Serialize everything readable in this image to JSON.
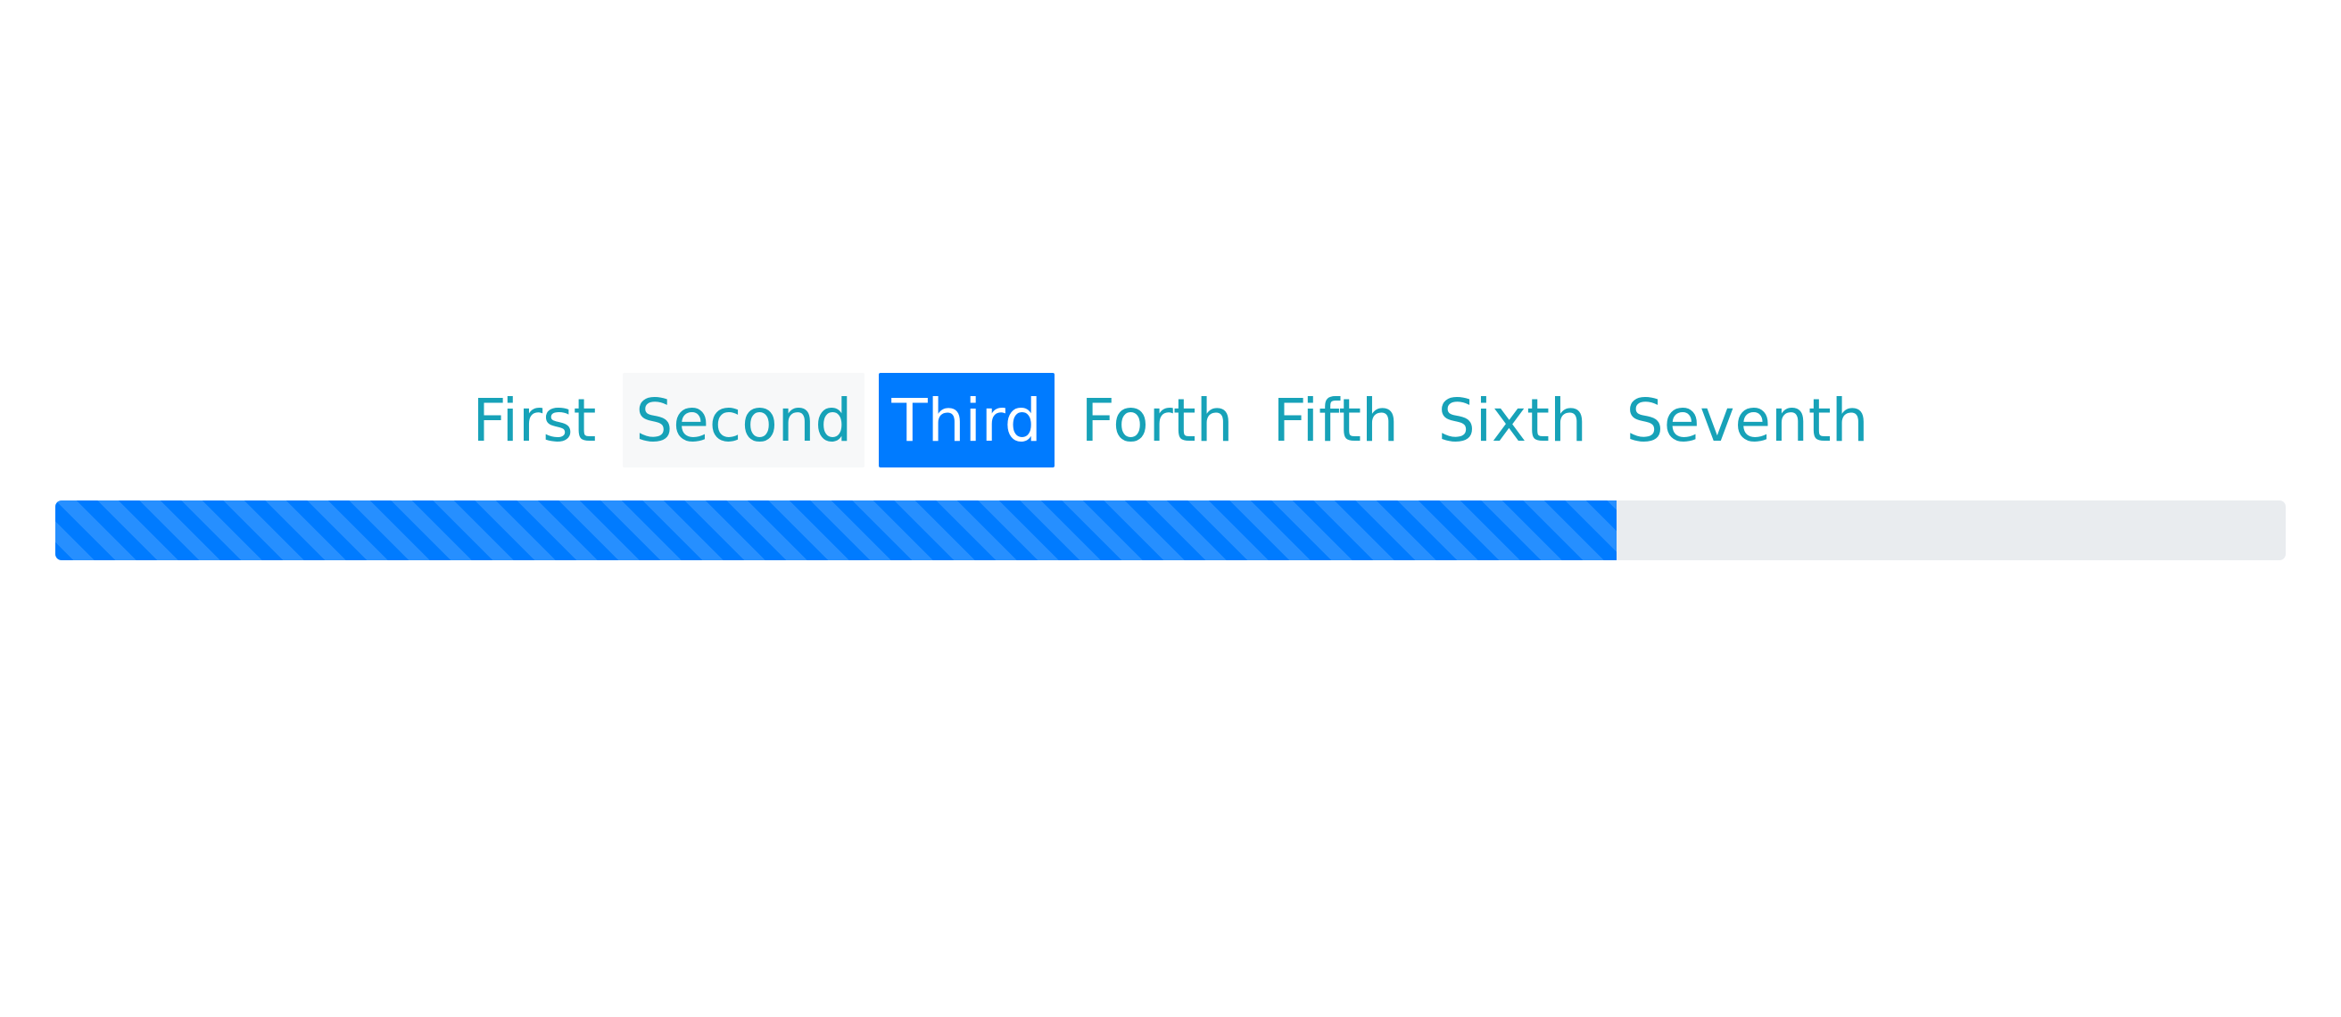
{
  "steps": [
    {
      "label": "First",
      "state": "default"
    },
    {
      "label": "Second",
      "state": "hover"
    },
    {
      "label": "Third",
      "state": "active"
    },
    {
      "label": "Forth",
      "state": "default"
    },
    {
      "label": "Fifth",
      "state": "default"
    },
    {
      "label": "Sixth",
      "state": "default"
    },
    {
      "label": "Seventh",
      "state": "default"
    }
  ],
  "progress": {
    "value_fraction": 0.7,
    "striped": true,
    "fill_color": "#007bff",
    "track_color": "#e9ecef"
  },
  "colors": {
    "link": "#17a2b8",
    "active_bg": "#007bff",
    "active_text": "#ffffff",
    "hover_bg": "#f7f8f9"
  }
}
